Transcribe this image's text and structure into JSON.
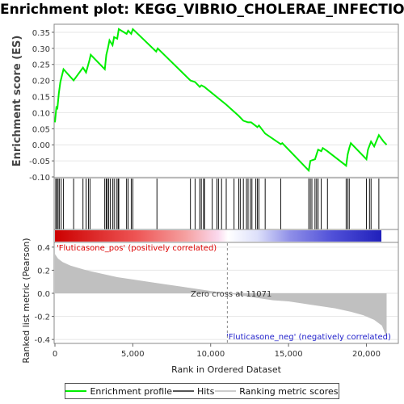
{
  "chart_data": {
    "type": "line",
    "title": "Enrichment plot: KEGG_VIBRIO_CHOLERAE_INFECTION",
    "top_panel": {
      "ylabel": "Enrichment score (ES)",
      "ylim": [
        -0.1,
        0.37
      ],
      "yticks": [
        "0.35",
        "0.30",
        "0.25",
        "0.20",
        "0.15",
        "0.10",
        "0.05",
        "0.00",
        "-0.05",
        "-0.10"
      ],
      "ytick_values": [
        0.35,
        0.3,
        0.25,
        0.2,
        0.15,
        0.1,
        0.05,
        0.0,
        -0.05,
        -0.1
      ],
      "series": [
        {
          "name": "Enrichment profile",
          "color": "#00ff00",
          "x": [
            0,
            100,
            150,
            250,
            350,
            550,
            1200,
            1800,
            2000,
            2200,
            2300,
            3200,
            3300,
            3400,
            3500,
            3700,
            3800,
            4000,
            4100,
            4600,
            4700,
            4900,
            5000,
            6500,
            6600,
            8700,
            9000,
            9300,
            9400,
            9600,
            11000,
            11800,
            12100,
            12400,
            12600,
            13000,
            13100,
            13500,
            14500,
            14600,
            16300,
            16400,
            16700,
            16800,
            16900,
            17100,
            17200,
            17500,
            18700,
            18800,
            18900,
            19000,
            20000,
            20100,
            20300,
            20500,
            20800,
            21100,
            21300
          ],
          "y": [
            0.07,
            0.12,
            0.11,
            0.16,
            0.195,
            0.235,
            0.2,
            0.24,
            0.225,
            0.26,
            0.28,
            0.235,
            0.28,
            0.3,
            0.325,
            0.31,
            0.335,
            0.33,
            0.36,
            0.345,
            0.355,
            0.345,
            0.36,
            0.29,
            0.3,
            0.2,
            0.195,
            0.18,
            0.185,
            0.18,
            0.125,
            0.09,
            0.075,
            0.07,
            0.07,
            0.055,
            0.06,
            0.035,
            0.002,
            0.005,
            -0.08,
            -0.05,
            -0.045,
            -0.03,
            -0.015,
            -0.02,
            -0.01,
            -0.02,
            -0.065,
            -0.03,
            -0.01,
            0.005,
            -0.045,
            -0.015,
            0.01,
            -0.005,
            0.03,
            0.01,
            0.0
          ]
        }
      ]
    },
    "hits": {
      "name": "Hits",
      "positions": [
        50,
        120,
        200,
        280,
        400,
        550,
        1200,
        1800,
        2000,
        2150,
        2250,
        3200,
        3300,
        3350,
        3450,
        3550,
        3700,
        3800,
        3950,
        4050,
        4100,
        4600,
        4700,
        4900,
        5000,
        6550,
        8700,
        9000,
        9300,
        9400,
        9550,
        9600,
        10100,
        10400,
        10500,
        10700,
        11000,
        11500,
        11800,
        11900,
        12100,
        12300,
        12400,
        12550,
        12650,
        12900,
        13000,
        13100,
        13500,
        14500,
        16300,
        16400,
        16500,
        16700,
        16800,
        16900,
        17100,
        17500,
        18700,
        18800,
        18900,
        20000,
        20200,
        20300,
        20800
      ]
    },
    "bottom_panel": {
      "ylabel": "Ranked list metric (Pearson)",
      "xlabel": "Rank in Ordered Dataset",
      "ylim": [
        -0.42,
        0.42
      ],
      "yticks": [
        "0.4",
        "0.2",
        "0.0",
        "-0.2",
        "-0.4"
      ],
      "ytick_values": [
        0.4,
        0.2,
        0.0,
        -0.2,
        -0.4
      ],
      "xlim": [
        0,
        22000
      ],
      "xticks": [
        "0",
        "5,000",
        "10,000",
        "15,000",
        "20,000"
      ],
      "xtick_values": [
        0,
        5000,
        10000,
        15000,
        20000
      ],
      "x": [
        0,
        200,
        500,
        1000,
        2000,
        3000,
        4000,
        5000,
        6000,
        7000,
        8000,
        9000,
        10000,
        11071,
        12000,
        13000,
        14000,
        15000,
        16000,
        17000,
        18000,
        19000,
        19800,
        20500,
        21000,
        21300
      ],
      "y": [
        0.34,
        0.3,
        0.27,
        0.24,
        0.2,
        0.17,
        0.14,
        0.12,
        0.1,
        0.08,
        0.06,
        0.04,
        0.02,
        0.0,
        -0.02,
        -0.04,
        -0.06,
        -0.07,
        -0.09,
        -0.11,
        -0.13,
        -0.16,
        -0.19,
        -0.23,
        -0.28,
        -0.38
      ],
      "zero_cross_label": "Zero cross at 11071",
      "zero_cross": 11071,
      "pos_label": "'Fluticasone_pos' (positively correlated)",
      "neg_label": "'Fluticasone_neg' (negatively correlated)",
      "pos_color": "#dd0000",
      "neg_color": "#2222cc"
    },
    "legend": [
      {
        "label": "Enrichment profile",
        "color": "#00ff00"
      },
      {
        "label": "Hits",
        "color": "#555555"
      },
      {
        "label": "Ranking metric scores",
        "color": "#cccccc"
      }
    ]
  }
}
